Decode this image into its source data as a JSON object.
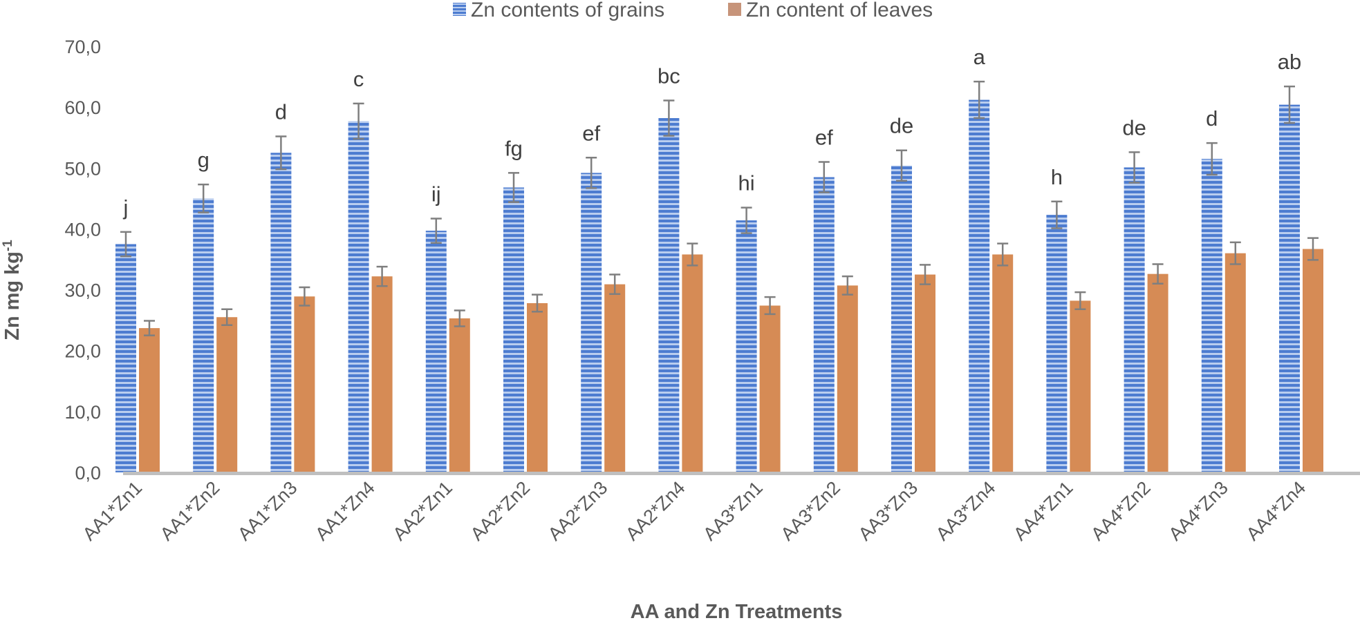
{
  "chart_data": {
    "type": "bar",
    "title": "",
    "xlabel": "AA and Zn Treatments",
    "ylabel_main": "Zn  mg kg",
    "ylabel_sup": "-1",
    "ylim": [
      0,
      70
    ],
    "ytick_step": 10,
    "ytick_labels": [
      "0,0",
      "10,0",
      "20,0",
      "30,0",
      "40,0",
      "50,0",
      "60,0",
      "70,0"
    ],
    "legend_position": "top-center",
    "categories": [
      "AA1*Zn1",
      "AA1*Zn2",
      "AA1*Zn3",
      "AA1*Zn4",
      "AA2*Zn1",
      "AA2*Zn2",
      "AA2*Zn3",
      "AA2*Zn4",
      "AA3*Zn1",
      "AA3*Zn2",
      "AA3*Zn3",
      "AA3*Zn4",
      "AA4*Zn1",
      "AA4*Zn2",
      "AA4*Zn3",
      "AA4*Zn4"
    ],
    "series": [
      {
        "name": "Zn contents of grains",
        "color": "#4472c4",
        "pattern": "horizontal-stripes",
        "values": [
          37.5,
          45.0,
          52.5,
          57.7,
          39.7,
          46.8,
          49.2,
          58.2,
          41.4,
          48.5,
          50.4,
          61.2,
          42.3,
          50.1,
          51.5,
          60.4
        ],
        "errors": [
          2.0,
          2.3,
          2.7,
          2.9,
          2.0,
          2.4,
          2.5,
          2.9,
          2.1,
          2.5,
          2.5,
          3.0,
          2.2,
          2.5,
          2.6,
          3.0
        ]
      },
      {
        "name": "Zn content of leaves",
        "color": "#d68b55",
        "pattern": "solid",
        "values": [
          23.7,
          25.5,
          28.9,
          32.2,
          25.3,
          27.8,
          30.9,
          35.8,
          27.4,
          30.7,
          32.5,
          35.8,
          28.2,
          32.6,
          36.0,
          36.7
        ],
        "errors": [
          1.2,
          1.3,
          1.5,
          1.6,
          1.3,
          1.4,
          1.6,
          1.8,
          1.4,
          1.5,
          1.6,
          1.8,
          1.4,
          1.6,
          1.8,
          1.8
        ]
      }
    ],
    "annotations": [
      "j",
      "g",
      "d",
      "c",
      "ij",
      "fg",
      "ef",
      "bc",
      "hi",
      "ef",
      "de",
      "a",
      "h",
      "de",
      "d",
      "ab"
    ]
  }
}
